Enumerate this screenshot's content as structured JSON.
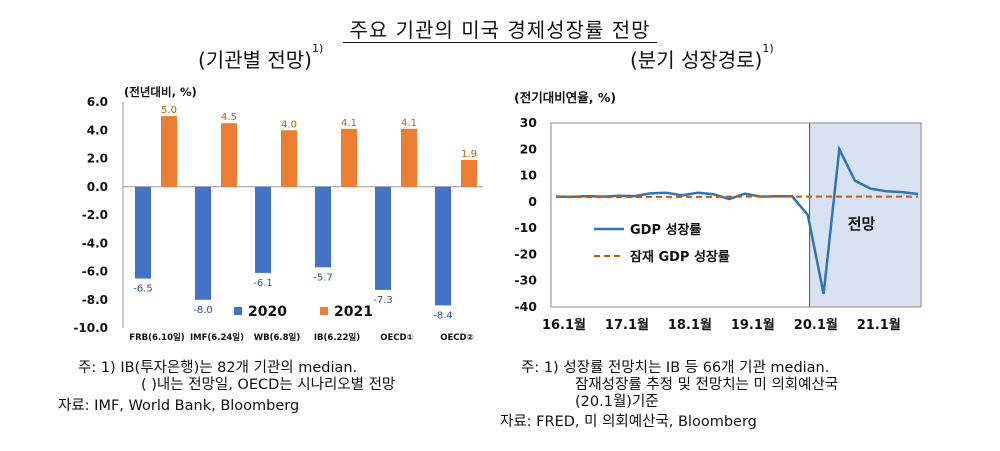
{
  "header": {
    "title": "주요 기관의 미국 경제성장률 전망",
    "left_subtitle": "(기관별 전망)",
    "right_subtitle": "(분기 성장경로)",
    "superscript": "1)"
  },
  "chart_data": [
    {
      "type": "bar",
      "unit_label": "(전년대비, %)",
      "categories": [
        "FRB(6.10일)",
        "IMF(6.24일)",
        "WB(6.8일)",
        "IB(6.22일)",
        "OECD①",
        "OECD②"
      ],
      "series": [
        {
          "name": "2020",
          "color": "#4472c4",
          "values": [
            -6.5,
            -8.0,
            -6.1,
            -5.7,
            -7.3,
            -8.4
          ],
          "labels": [
            "-6.5",
            "-8.0",
            "-6.1",
            "-5.7",
            "-7.3",
            "-8.4"
          ]
        },
        {
          "name": "2021",
          "color": "#ed7d31",
          "values": [
            5.0,
            4.5,
            4.0,
            4.1,
            4.1,
            1.9
          ],
          "labels": [
            "5.0",
            "4.5",
            "4.0",
            "4.1",
            "4.1",
            "1.9"
          ]
        }
      ],
      "ylim": [
        -10,
        6
      ],
      "yticks": [
        "6.0",
        "4.0",
        "2.0",
        "0.0",
        "-2.0",
        "-4.0",
        "-6.0",
        "-8.0",
        "-10.0"
      ],
      "ytick_values": [
        6,
        4,
        2,
        0,
        -2,
        -4,
        -6,
        -8,
        -10
      ],
      "legend": "bottom"
    },
    {
      "type": "line",
      "unit_label": "(전기대비연율, %)",
      "x": [
        "16.1Q",
        "16.2Q",
        "16.3Q",
        "16.4Q",
        "17.1Q",
        "17.2Q",
        "17.3Q",
        "17.4Q",
        "18.1Q",
        "18.2Q",
        "18.3Q",
        "18.4Q",
        "19.1Q",
        "19.2Q",
        "19.3Q",
        "19.4Q",
        "20.1Q",
        "20.2Q",
        "20.3Q",
        "20.4Q",
        "21.1Q",
        "21.2Q",
        "21.3Q",
        "21.4Q"
      ],
      "xtick_labels": [
        "16.1월",
        "17.1월",
        "18.1월",
        "19.1월",
        "20.1월",
        "21.1월"
      ],
      "xtick_indices": [
        0,
        4,
        8,
        12,
        16,
        20
      ],
      "series": [
        {
          "name": "GDP 성장률",
          "color": "#2e75b6",
          "style": "solid",
          "values": [
            2.0,
            1.9,
            2.2,
            2.0,
            2.3,
            2.2,
            3.2,
            3.5,
            2.5,
            3.5,
            2.9,
            1.1,
            3.1,
            2.0,
            2.1,
            2.1,
            -5.0,
            -35.0,
            20.0,
            8.0,
            5.0,
            4.0,
            3.7,
            3.0
          ]
        },
        {
          "name": "잠재 GDP 성장률",
          "color": "#c55a11",
          "style": "dashed",
          "values": [
            1.8,
            1.8,
            1.8,
            1.8,
            1.8,
            1.8,
            1.9,
            1.9,
            1.9,
            1.9,
            1.9,
            2.0,
            2.0,
            2.0,
            2.0,
            2.0,
            2.0,
            2.0,
            2.0,
            2.0,
            2.0,
            2.0,
            2.0,
            2.0
          ]
        }
      ],
      "ylim": [
        -40,
        30
      ],
      "yticks": [
        "30",
        "20",
        "10",
        "0",
        "-10",
        "-20",
        "-30",
        "-40"
      ],
      "ytick_values": [
        30,
        20,
        10,
        0,
        -10,
        -20,
        -30,
        -40
      ],
      "forecast_region": {
        "start": "20.2Q",
        "label": "전망",
        "color": "#d9e2f3"
      },
      "legend": "center-left"
    }
  ],
  "notes": {
    "left": [
      "주: 1) IB(투자은행)는 82개 기관의 median.",
      "( )내는 전망일, OECD는 시나리오별 전망",
      "자료: IMF, World Bank, Bloomberg"
    ],
    "right": [
      "주: 1) 성장률 전망치는 IB 등 66개 기관 median.",
      "잠재성장률 추정 및 전망치는 미 의회예산국",
      "(20.1월)기준",
      "자료: FRED, 미 의회예산국, Bloomberg"
    ]
  }
}
